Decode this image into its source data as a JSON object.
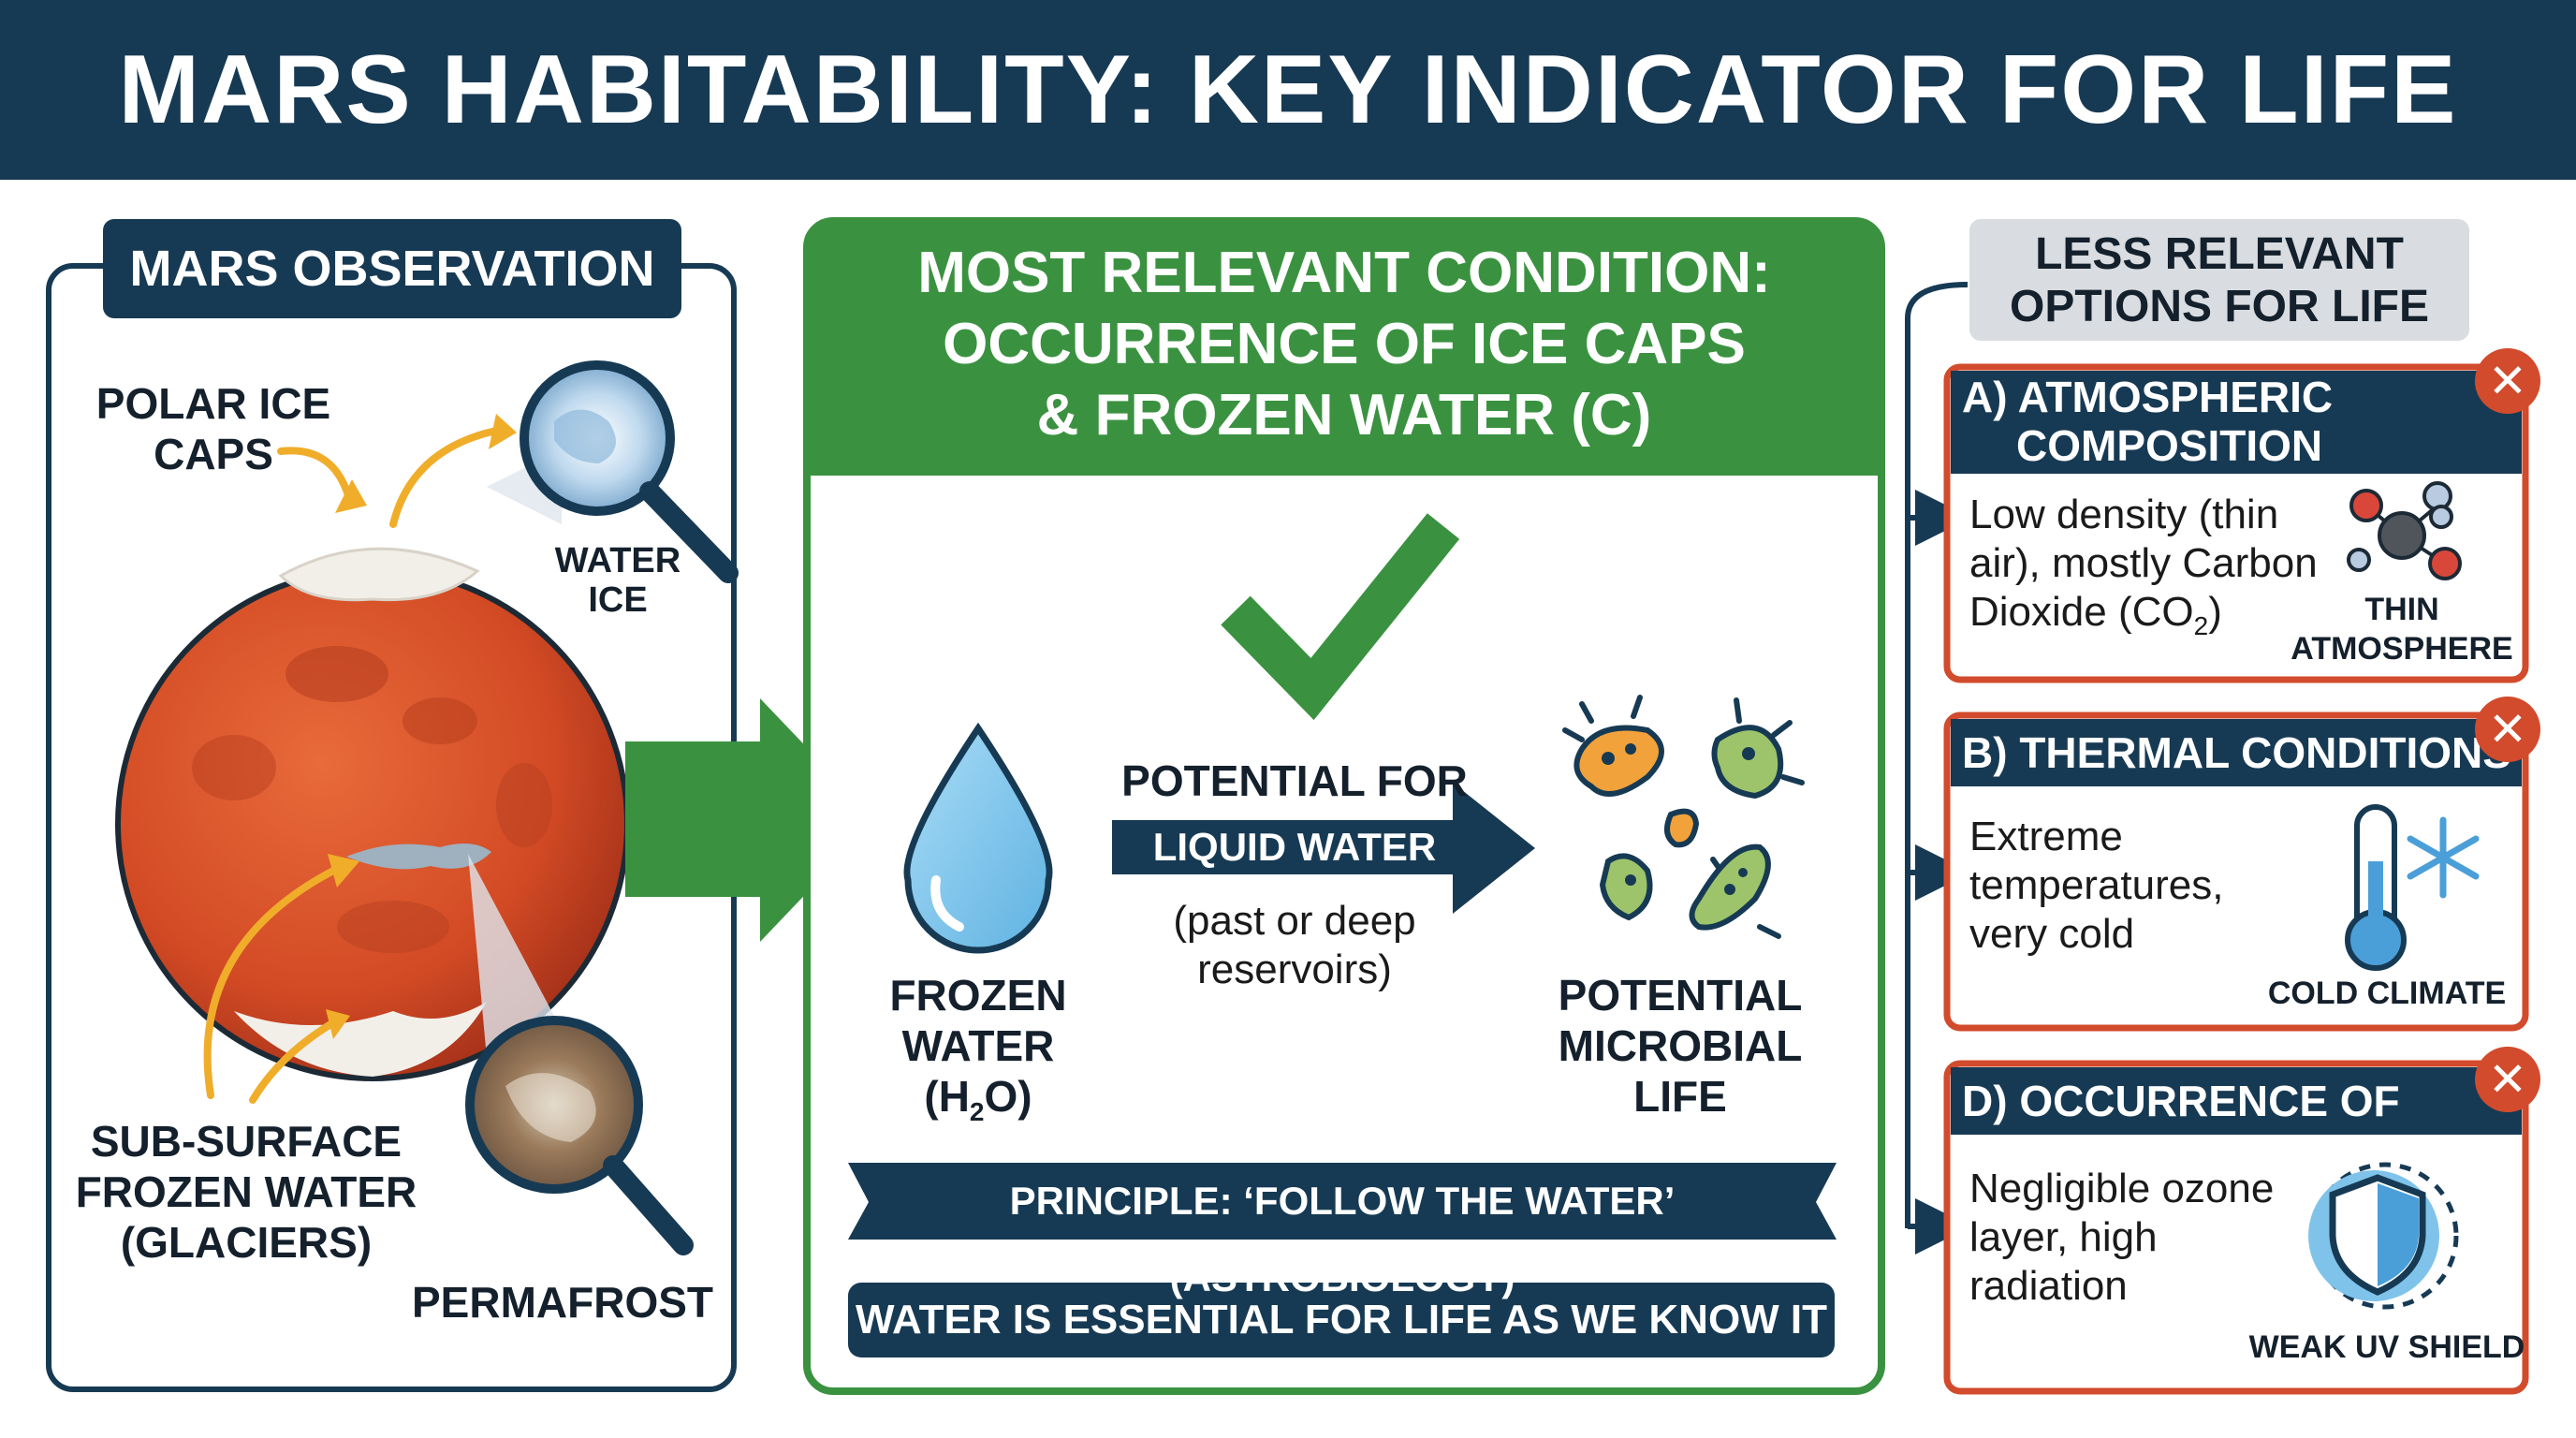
{
  "title": "MARS HABITABILITY: KEY INDICATOR FOR LIFE",
  "left_panel": {
    "header": "MARS OBSERVATION",
    "labels": {
      "polar_line1": "POLAR ICE",
      "polar_line2": "CAPS",
      "water_line1": "WATER",
      "water_line2": "ICE",
      "subsurface_line1": "SUB-SURFACE",
      "subsurface_line2": "FROZEN WATER",
      "subsurface_line3": "(GLACIERS)",
      "permafrost": "PERMAFROST"
    }
  },
  "center_panel": {
    "header_line1": "MOST RELEVANT CONDITION:",
    "header_line2": "OCCURRENCE OF ICE CAPS",
    "header_line3": "& FROZEN WATER (C)",
    "frozen_line1": "FROZEN",
    "frozen_line2": "WATER",
    "frozen_line3_a": "(H",
    "frozen_line3_sub": "2",
    "frozen_line3_b": "O)",
    "potential_for": "POTENTIAL FOR",
    "liquid_water": "LIQUID WATER",
    "reservoirs_line1": "(past or deep",
    "reservoirs_line2": "reservoirs)",
    "life_line1": "POTENTIAL",
    "life_line2": "MICROBIAL LIFE",
    "principle": "PRINCIPLE: ‘FOLLOW THE WATER’ (ASTROBIOLOGY)",
    "essential": "WATER IS ESSENTIAL FOR LIFE AS WE KNOW IT"
  },
  "right_panel": {
    "header_line1": "LESS RELEVANT",
    "header_line2": "OPTIONS FOR LIFE",
    "cards": [
      {
        "title_line1": "A) ATMOSPHERIC",
        "title_line2": "COMPOSITION",
        "text_line1": "Low density (thin",
        "text_line2": "air), mostly Carbon",
        "text_line3_a": "Dioxide (CO",
        "text_line3_sub": "2",
        "text_line3_b": ")",
        "caption_line1": "THIN",
        "caption_line2": "ATMOSPHERE",
        "icon": "co2-molecule-icon"
      },
      {
        "title_line1": "B) THERMAL CONDITIONS",
        "text_line1": "Extreme",
        "text_line2": "temperatures,",
        "text_line3": "very cold",
        "caption_line1": "COLD CLIMATE",
        "icon": "thermometer-snowflake-icon"
      },
      {
        "title_line1": "D) OCCURRENCE OF OZONE",
        "text_line1": "Negligible ozone",
        "text_line2": "layer, high",
        "text_line3": "radiation",
        "caption_line1": "WEAK UV SHIELD",
        "icon": "shield-icon"
      }
    ],
    "close_glyph": "✕"
  },
  "colors": {
    "navy": "#173a54",
    "green": "#3a9240",
    "orange_red": "#d24b2c",
    "mars": "#d9542a",
    "water_blue": "#7fc3ea",
    "arrow_yellow": "#f0ad2a"
  }
}
